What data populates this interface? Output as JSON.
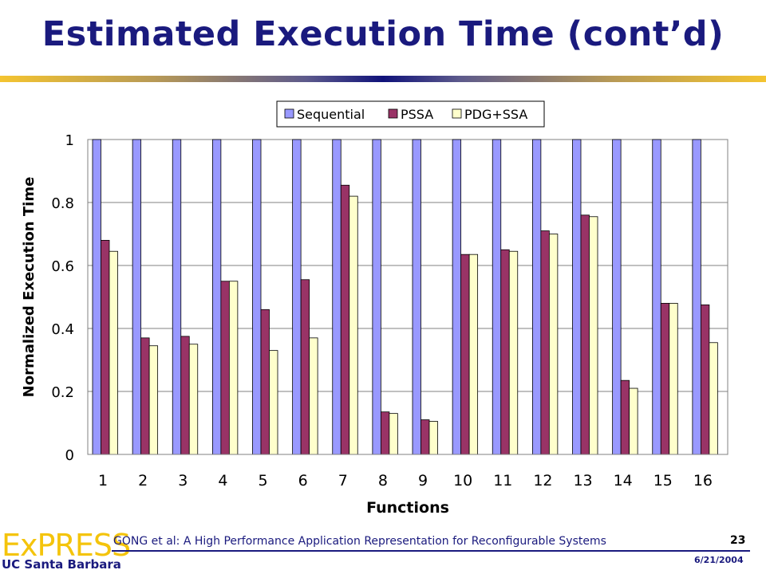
{
  "slide": {
    "title": "Estimated Execution Time (cont’d)",
    "footer_citation": "GONG et al: A High Performance Application Representation for Reconfigurable Systems",
    "page_number": "23",
    "date": "6/21/2004",
    "logo_text": "ExPRESS",
    "logo_subtext": "UC Santa Barbara"
  },
  "chart_data": {
    "type": "bar",
    "xlabel": "Functions",
    "ylabel": "Normalized Execution Time",
    "ylim": [
      0,
      1
    ],
    "yticks": [
      "0",
      "0.2",
      "0.4",
      "0.6",
      "0.8",
      "1"
    ],
    "grid": true,
    "legend_position": "top-center",
    "categories": [
      "1",
      "2",
      "3",
      "4",
      "5",
      "6",
      "7",
      "8",
      "9",
      "10",
      "11",
      "12",
      "13",
      "14",
      "15",
      "16"
    ],
    "series": [
      {
        "name": "Sequential",
        "color": "#9999ff",
        "values": [
          1,
          1,
          1,
          1,
          1,
          1,
          1,
          1,
          1,
          1,
          1,
          1,
          1,
          1,
          1,
          1
        ]
      },
      {
        "name": "PSSA",
        "color": "#993366",
        "values": [
          0.68,
          0.37,
          0.375,
          0.55,
          0.46,
          0.555,
          0.855,
          0.135,
          0.11,
          0.635,
          0.65,
          0.71,
          0.76,
          0.235,
          0.48,
          0.475
        ]
      },
      {
        "name": "PDG+SSA",
        "color": "#ffffcc",
        "values": [
          0.645,
          0.345,
          0.35,
          0.55,
          0.33,
          0.37,
          0.82,
          0.13,
          0.105,
          0.635,
          0.645,
          0.7,
          0.755,
          0.21,
          0.48,
          0.355
        ]
      }
    ]
  }
}
